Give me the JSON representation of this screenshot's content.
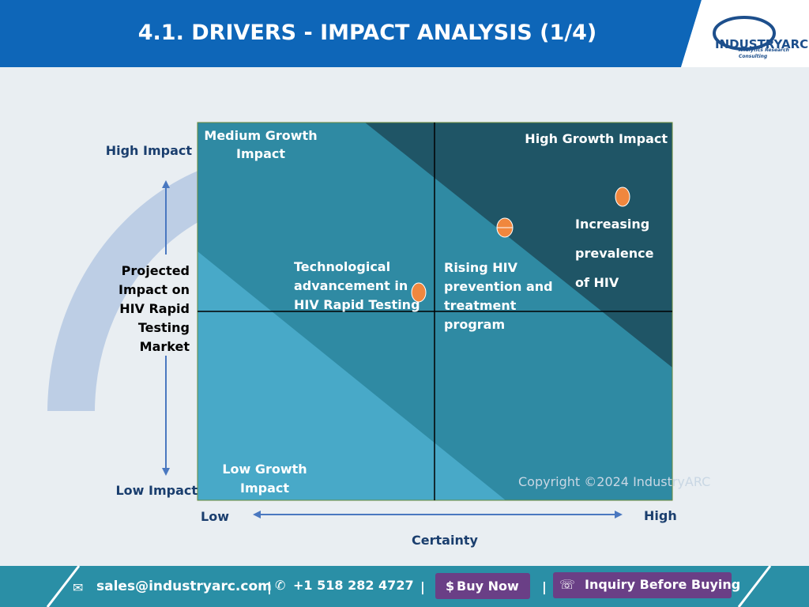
{
  "header": {
    "title": "4.1. DRIVERS - IMPACT ANALYSIS (1/4)",
    "logo": "INDUSTRYARC",
    "logo_tagline": "Analytics Research Consulting"
  },
  "matrix": {
    "y_axis_label": "Projected Impact on HIV Rapid Testing Market",
    "y_high": "High Impact",
    "y_low": "Low Impact",
    "x_low": "Low",
    "x_high": "High",
    "x_axis_label": "Certainty",
    "quadrants": {
      "top_left": "Medium Growth Impact",
      "top_right": "High Growth Impact",
      "bottom_left": "Low Growth Impact"
    },
    "drivers": [
      "Technological advancement in HIV Rapid Testing",
      "Rising HIV prevention and treatment program",
      "Increasing prevalence of HIV"
    ]
  },
  "copyright": "Copyright ©2024 IndustryARC",
  "footer": {
    "email": "sales@industryarc.com",
    "phone": "+1 518 282 4727",
    "buy": "Buy Now",
    "inquiry": "Inquiry Before Buying"
  }
}
